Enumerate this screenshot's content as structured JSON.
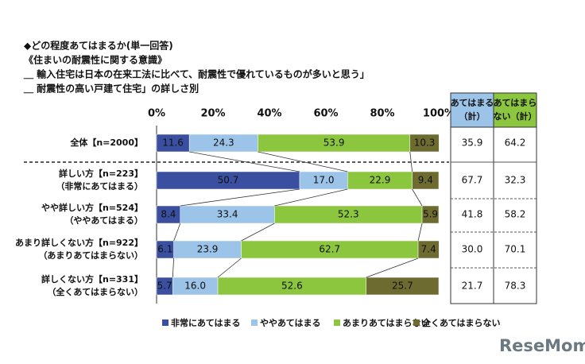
{
  "chart_data": {
    "type": "stacked-bar-horizontal",
    "title": [
      "◆どの程度あてはまるか(単一回答)",
      "《住まいの耐震性に関する意識》",
      "＿ 輸入住宅は日本の在来工法に比べて、耐震性で優れているものが多いと思う」",
      "＿ 耐震性の高い戸建て住宅」の詳しさ別"
    ],
    "categories": [
      [
        "全体【n=2000】"
      ],
      [
        "詳しい方【n=223】",
        "（非常にあてはまる）"
      ],
      [
        "やや詳しい方【n=524】",
        "（ややあてはまる）"
      ],
      [
        "あまり詳しくない方【n=922】",
        "（あまりあてはまらない）"
      ],
      [
        "詳しくない方【n=331】",
        "（全くあてはまらない）"
      ]
    ],
    "series": [
      {
        "name": "非常にあてはまる",
        "color": "#3b4fa0",
        "values": [
          11.6,
          50.7,
          8.4,
          6.1,
          5.7
        ],
        "value_labels": [
          "11.6",
          "50.7",
          "8.4",
          "6.1",
          "5.7"
        ]
      },
      {
        "name": "ややあてはまる",
        "color": "#9cc3e8",
        "values": [
          24.3,
          17.0,
          33.4,
          23.9,
          16.0
        ],
        "value_labels": [
          "24.3",
          "17.0",
          "33.4",
          "23.9",
          "16.0"
        ]
      },
      {
        "name": "あまりあてはまらない",
        "color": "#8cc63f",
        "values": [
          53.9,
          22.9,
          52.3,
          62.7,
          52.6
        ],
        "value_labels": [
          "53.9",
          "22.9",
          "52.3",
          "62.7",
          "52.6"
        ]
      },
      {
        "name": "全くあてはまらない",
        "color": "#6e6b30",
        "values": [
          10.3,
          9.4,
          5.9,
          7.4,
          25.7
        ],
        "value_labels": [
          "10.3",
          "9.4",
          "5.9",
          "7.4",
          "25.7"
        ]
      }
    ],
    "xlim": [
      0,
      100
    ],
    "xticks": [
      {
        "value": 0,
        "label": "0%"
      },
      {
        "value": 20,
        "label": "20%"
      },
      {
        "value": 40,
        "label": "40%"
      },
      {
        "value": 60,
        "label": "60%"
      },
      {
        "value": 80,
        "label": "80%"
      },
      {
        "value": 100,
        "label": "100%"
      }
    ],
    "summary": [
      {
        "name": [
          "あてはまる",
          "（計）"
        ],
        "color": "#9cc3e8",
        "values": [
          35.9,
          67.7,
          41.8,
          30.0,
          21.7
        ],
        "value_labels": [
          "35.9",
          "67.7",
          "41.8",
          "30.0",
          "21.7"
        ]
      },
      {
        "name": [
          "あてはまら",
          "ない（計）"
        ],
        "color": "#8cc63f",
        "values": [
          64.2,
          32.3,
          58.2,
          70.1,
          78.3
        ],
        "value_labels": [
          "64.2",
          "32.3",
          "58.2",
          "70.1",
          "78.3"
        ]
      }
    ],
    "watermark": "ReseMom"
  }
}
